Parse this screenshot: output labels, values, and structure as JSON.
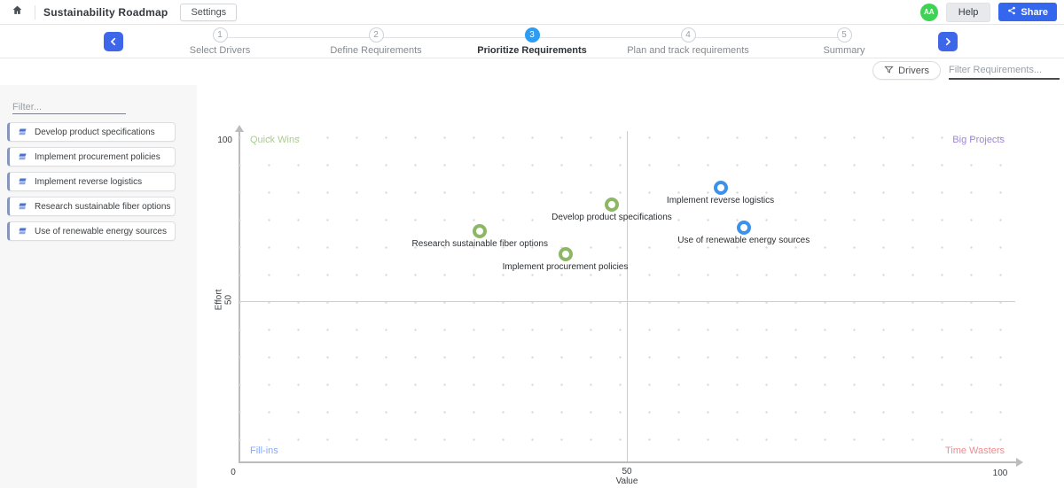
{
  "header": {
    "title": "Sustainability Roadmap",
    "settings_label": "Settings",
    "avatar_initials": "AA",
    "help_label": "Help",
    "share_label": "Share"
  },
  "stepper": {
    "steps": [
      {
        "number": "1",
        "label": "Select Drivers",
        "active": false
      },
      {
        "number": "2",
        "label": "Define Requirements",
        "active": false
      },
      {
        "number": "3",
        "label": "Prioritize Requirements",
        "active": true
      },
      {
        "number": "4",
        "label": "Plan and track requirements",
        "active": false
      },
      {
        "number": "5",
        "label": "Summary",
        "active": false
      }
    ]
  },
  "toolbar": {
    "drivers_label": "Drivers",
    "requirements_filter_placeholder": "Filter Requirements..."
  },
  "sidebar": {
    "filter_placeholder": "Filter...",
    "items": [
      {
        "label": "Develop product specifications"
      },
      {
        "label": "Implement procurement policies"
      },
      {
        "label": "Implement reverse logistics"
      },
      {
        "label": "Research sustainable fiber options"
      },
      {
        "label": "Use of renewable energy sources"
      }
    ]
  },
  "chart_data": {
    "type": "scatter",
    "xlabel": "Value",
    "ylabel": "Effort",
    "xlim": [
      0,
      100
    ],
    "ylim": [
      0,
      100
    ],
    "x_ticks": [
      "0",
      "50",
      "100"
    ],
    "y_ticks": [
      "50",
      "100"
    ],
    "grid": "dotted",
    "quadrants": {
      "top_left": {
        "label": "Quick Wins",
        "color": "#a9cf8a"
      },
      "top_right": {
        "label": "Big Projects",
        "color": "#9f86d8"
      },
      "bottom_left": {
        "label": "Fill-ins",
        "color": "#89a8f5"
      },
      "bottom_right": {
        "label": "Time Wasters",
        "color": "#ee8d8d"
      }
    },
    "series": [
      {
        "name": "green-requirements",
        "color": "#8cb765",
        "points": [
          {
            "label": "Develop product specifications",
            "value": 48,
            "effort": 78
          },
          {
            "label": "Research sustainable fiber options",
            "value": 31,
            "effort": 70
          },
          {
            "label": "Implement procurement policies",
            "value": 42,
            "effort": 63
          }
        ]
      },
      {
        "name": "blue-requirements",
        "color": "#3c92ea",
        "points": [
          {
            "label": "Implement reverse logistics",
            "value": 62,
            "effort": 83
          },
          {
            "label": "Use of renewable energy sources",
            "value": 65,
            "effort": 71
          }
        ]
      }
    ]
  },
  "colors": {
    "primary_blue": "#3467ee",
    "active_step_blue": "#2d9cf1",
    "avatar_green": "#3fd355",
    "sidebar_accent": "#8795bb"
  }
}
